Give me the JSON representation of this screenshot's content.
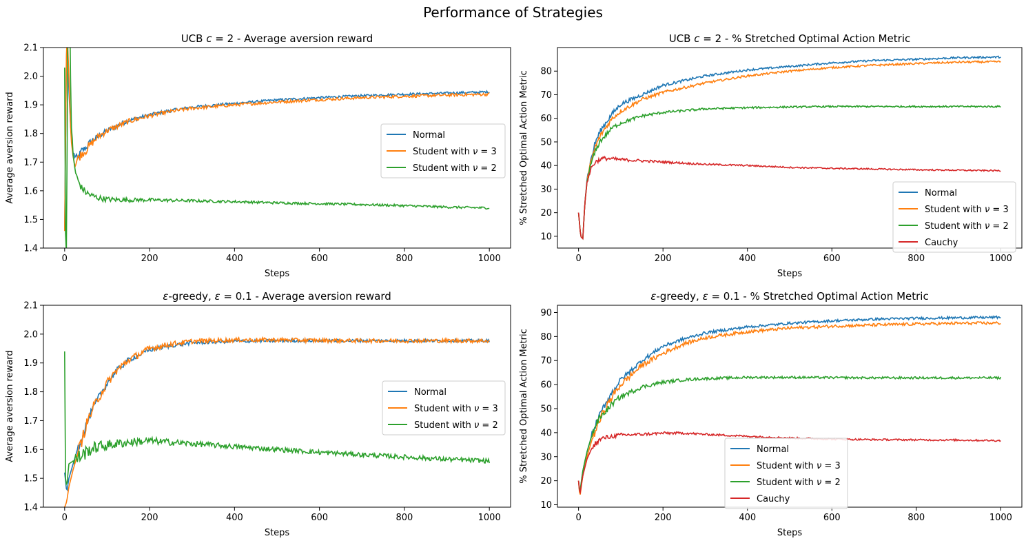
{
  "suptitle": "Performance of Strategies",
  "colors": {
    "normal": "#1f77b4",
    "student3": "#ff7f0e",
    "student2": "#2ca02c",
    "cauchy": "#d62728"
  },
  "chart_data": [
    {
      "id": "ucb-avg",
      "type": "line",
      "title": "UCB c = 2 - Average aversion reward",
      "title_parts": [
        "UCB ",
        "c",
        " = 2 - Average aversion reward"
      ],
      "xlabel": "Steps",
      "ylabel": "Average aversion reward",
      "xlim": [
        -50,
        1050
      ],
      "ylim": [
        1.4,
        2.1
      ],
      "xticks": [
        0,
        200,
        400,
        600,
        800,
        1000
      ],
      "yticks": [
        1.4,
        1.5,
        1.6,
        1.7,
        1.8,
        1.9,
        2.0,
        2.1
      ],
      "ytick_labels": [
        "1.4",
        "1.5",
        "1.6",
        "1.7",
        "1.8",
        "1.9",
        "2.0",
        "2.1"
      ],
      "grid": false,
      "legend": "center-right",
      "series": [
        {
          "name": "Normal",
          "name_parts": [
            "Normal"
          ],
          "color": "#1f77b4",
          "x": [
            0,
            5,
            10,
            15,
            20,
            30,
            40,
            50,
            60,
            80,
            100,
            150,
            200,
            250,
            300,
            400,
            500,
            600,
            700,
            800,
            900,
            1000
          ],
          "y": [
            1.46,
            2.2,
            1.95,
            1.8,
            1.73,
            1.71,
            1.74,
            1.75,
            1.77,
            1.79,
            1.81,
            1.845,
            1.865,
            1.88,
            1.892,
            1.905,
            1.917,
            1.925,
            1.932,
            1.937,
            1.941,
            1.945
          ],
          "noise": 0.004
        },
        {
          "name": "Student with ν = 3",
          "name_parts": [
            "Student with ",
            "ν",
            " = 3"
          ],
          "color": "#ff7f0e",
          "x": [
            0,
            5,
            10,
            15,
            20,
            25,
            30,
            40,
            50,
            60,
            80,
            100,
            150,
            200,
            250,
            300,
            400,
            500,
            600,
            700,
            800,
            900,
            1000
          ],
          "y": [
            1.46,
            2.2,
            2.0,
            1.78,
            1.72,
            1.69,
            1.71,
            1.73,
            1.74,
            1.76,
            1.79,
            1.81,
            1.842,
            1.862,
            1.877,
            1.888,
            1.9,
            1.91,
            1.918,
            1.925,
            1.93,
            1.934,
            1.937
          ],
          "noise": 0.005
        },
        {
          "name": "Student with ν = 2",
          "name_parts": [
            "Student with ",
            "ν",
            " = 2"
          ],
          "color": "#2ca02c",
          "x": [
            0,
            2,
            5,
            7,
            10,
            13,
            15,
            20,
            25,
            30,
            40,
            50,
            60,
            80,
            100,
            150,
            200,
            300,
            400,
            500,
            600,
            700,
            800,
            900,
            1000
          ],
          "y": [
            2.03,
            1.45,
            1.35,
            2.2,
            2.4,
            2.15,
            1.85,
            1.72,
            1.67,
            1.64,
            1.61,
            1.595,
            1.585,
            1.575,
            1.57,
            1.568,
            1.568,
            1.565,
            1.562,
            1.558,
            1.555,
            1.552,
            1.548,
            1.543,
            1.54
          ],
          "noise": 0.004
        }
      ]
    },
    {
      "id": "ucb-pct",
      "type": "line",
      "title": "UCB c = 2 - % Stretched Optimal Action Metric",
      "title_parts": [
        "UCB ",
        "c",
        " = 2 - % Stretched Optimal Action Metric"
      ],
      "xlabel": "Steps",
      "ylabel": "% Stretched Optimal Action Metric",
      "xlim": [
        -50,
        1050
      ],
      "ylim": [
        5,
        90
      ],
      "xticks": [
        0,
        200,
        400,
        600,
        800,
        1000
      ],
      "yticks": [
        10,
        20,
        30,
        40,
        50,
        60,
        70,
        80
      ],
      "ytick_labels": [
        "10",
        "20",
        "30",
        "40",
        "50",
        "60",
        "70",
        "80"
      ],
      "grid": false,
      "legend": "lower-right",
      "series": [
        {
          "name": "Normal",
          "name_parts": [
            "Normal"
          ],
          "color": "#1f77b4",
          "x": [
            0,
            5,
            10,
            15,
            20,
            30,
            40,
            50,
            60,
            80,
            100,
            150,
            200,
            300,
            400,
            500,
            600,
            700,
            800,
            900,
            1000
          ],
          "y": [
            20,
            10,
            9,
            24,
            34,
            43,
            50,
            54,
            57,
            62,
            66,
            70,
            74,
            78,
            80.5,
            82,
            83.5,
            84.5,
            85,
            85.7,
            86
          ],
          "noise": 0.4
        },
        {
          "name": "Student with ν = 3",
          "name_parts": [
            "Student with ",
            "ν",
            " = 3"
          ],
          "color": "#ff7f0e",
          "x": [
            0,
            5,
            10,
            15,
            20,
            30,
            40,
            50,
            60,
            80,
            100,
            150,
            200,
            300,
            400,
            500,
            600,
            700,
            800,
            900,
            1000
          ],
          "y": [
            20,
            10,
            9,
            24,
            33,
            42,
            48,
            52,
            55,
            60,
            63,
            68,
            71,
            75,
            78,
            80,
            81.5,
            82.5,
            83.2,
            83.8,
            84
          ],
          "noise": 0.4
        },
        {
          "name": "Student with ν = 2",
          "name_parts": [
            "Student with ",
            "ν",
            " = 2"
          ],
          "color": "#2ca02c",
          "x": [
            0,
            5,
            10,
            15,
            20,
            30,
            40,
            50,
            60,
            80,
            100,
            150,
            200,
            300,
            400,
            500,
            600,
            700,
            800,
            900,
            1000
          ],
          "y": [
            20,
            10,
            9,
            24,
            33,
            41,
            46,
            50,
            52,
            56,
            58,
            61,
            62.5,
            64,
            64.5,
            64.8,
            65,
            65,
            65,
            65,
            65
          ],
          "noise": 0.35
        },
        {
          "name": "Cauchy",
          "name_parts": [
            "Cauchy"
          ],
          "color": "#d62728",
          "x": [
            0,
            5,
            10,
            15,
            20,
            30,
            40,
            50,
            60,
            80,
            100,
            150,
            200,
            300,
            400,
            500,
            600,
            700,
            800,
            900,
            1000
          ],
          "y": [
            20,
            10,
            9,
            24,
            33,
            39,
            41.5,
            42.5,
            43,
            42.8,
            42.5,
            42,
            41.5,
            40.5,
            40,
            39.2,
            38.8,
            38.5,
            38.2,
            38,
            37.8
          ],
          "noise": 0.3
        }
      ]
    },
    {
      "id": "eps-avg",
      "type": "line",
      "title": "ε-greedy, ε = 0.1 - Average aversion reward",
      "title_parts": [
        "ε",
        "-greedy, ",
        "ε",
        " = 0.1 - Average aversion reward"
      ],
      "xlabel": "Steps",
      "ylabel": "Average aversion reward",
      "xlim": [
        -50,
        1050
      ],
      "ylim": [
        1.4,
        2.1
      ],
      "xticks": [
        0,
        200,
        400,
        600,
        800,
        1000
      ],
      "yticks": [
        1.4,
        1.5,
        1.6,
        1.7,
        1.8,
        1.9,
        2.0,
        2.1
      ],
      "ytick_labels": [
        "1.4",
        "1.5",
        "1.6",
        "1.7",
        "1.8",
        "1.9",
        "2.0",
        "2.1"
      ],
      "grid": false,
      "legend": "center-right",
      "series": [
        {
          "name": "Normal",
          "name_parts": [
            "Normal"
          ],
          "color": "#1f77b4",
          "x": [
            0,
            5,
            10,
            20,
            30,
            40,
            50,
            60,
            80,
            100,
            120,
            150,
            200,
            250,
            300,
            400,
            500,
            600,
            700,
            800,
            900,
            1000
          ],
          "y": [
            1.52,
            1.45,
            1.5,
            1.55,
            1.6,
            1.64,
            1.68,
            1.72,
            1.78,
            1.83,
            1.87,
            1.91,
            1.945,
            1.96,
            1.97,
            1.975,
            1.977,
            1.977,
            1.977,
            1.977,
            1.977,
            1.977
          ],
          "noise": 0.005
        },
        {
          "name": "Student with ν = 3",
          "name_parts": [
            "Student with ",
            "ν",
            " = 3"
          ],
          "color": "#ff7f0e",
          "x": [
            0,
            5,
            10,
            20,
            30,
            40,
            50,
            60,
            80,
            100,
            120,
            150,
            200,
            250,
            300,
            400,
            500,
            600,
            700,
            800,
            900,
            1000
          ],
          "y": [
            1.4,
            1.42,
            1.47,
            1.53,
            1.58,
            1.63,
            1.68,
            1.72,
            1.78,
            1.83,
            1.87,
            1.91,
            1.95,
            1.965,
            1.975,
            1.98,
            1.98,
            1.978,
            1.977,
            1.977,
            1.977,
            1.977
          ],
          "noise": 0.007
        },
        {
          "name": "Student with ν = 2",
          "name_parts": [
            "Student with ",
            "ν",
            " = 2"
          ],
          "color": "#2ca02c",
          "x": [
            0,
            2,
            5,
            10,
            20,
            30,
            40,
            60,
            80,
            100,
            150,
            200,
            250,
            300,
            350,
            400,
            450,
            500,
            600,
            700,
            800,
            900,
            1000
          ],
          "y": [
            1.94,
            1.5,
            1.47,
            1.55,
            1.56,
            1.57,
            1.58,
            1.6,
            1.61,
            1.615,
            1.625,
            1.63,
            1.625,
            1.62,
            1.615,
            1.61,
            1.605,
            1.6,
            1.59,
            1.582,
            1.574,
            1.566,
            1.56
          ],
          "noise": 0.008
        }
      ]
    },
    {
      "id": "eps-pct",
      "type": "line",
      "title": "ε-greedy, ε = 0.1 - % Stretched Optimal Action Metric",
      "title_parts": [
        "ε",
        "-greedy, ",
        "ε",
        " = 0.1 - % Stretched Optimal Action Metric"
      ],
      "xlabel": "Steps",
      "ylabel": "% Stretched Optimal Action Metric",
      "xlim": [
        -50,
        1050
      ],
      "ylim": [
        9,
        93
      ],
      "xticks": [
        0,
        200,
        400,
        600,
        800,
        1000
      ],
      "yticks": [
        10,
        20,
        30,
        40,
        50,
        60,
        70,
        80,
        90
      ],
      "ytick_labels": [
        "10",
        "20",
        "30",
        "40",
        "50",
        "60",
        "70",
        "80",
        "90"
      ],
      "grid": false,
      "legend": "lower-center",
      "series": [
        {
          "name": "Normal",
          "name_parts": [
            "Normal"
          ],
          "color": "#1f77b4",
          "x": [
            0,
            3,
            10,
            20,
            30,
            40,
            50,
            60,
            80,
            100,
            150,
            200,
            250,
            300,
            400,
            500,
            600,
            700,
            800,
            900,
            1000
          ],
          "y": [
            20,
            14,
            24,
            32,
            38,
            43,
            47,
            51,
            57,
            62,
            70,
            76,
            79,
            81.5,
            84,
            85.5,
            86.5,
            87.2,
            87.6,
            87.8,
            88
          ],
          "noise": 0.5
        },
        {
          "name": "Student with ν = 3",
          "name_parts": [
            "Student with ",
            "ν",
            " = 3"
          ],
          "color": "#ff7f0e",
          "x": [
            0,
            3,
            10,
            20,
            30,
            40,
            50,
            60,
            80,
            100,
            150,
            200,
            250,
            300,
            400,
            500,
            600,
            700,
            800,
            900,
            1000
          ],
          "y": [
            20,
            13,
            22,
            30,
            36,
            41,
            45,
            49,
            55,
            60,
            68,
            73,
            77,
            79.5,
            82,
            83.5,
            84.3,
            84.8,
            85.2,
            85.5,
            85.6
          ],
          "noise": 0.6
        },
        {
          "name": "Student with ν = 2",
          "name_parts": [
            "Student with ",
            "ν",
            " = 2"
          ],
          "color": "#2ca02c",
          "x": [
            0,
            3,
            10,
            20,
            30,
            40,
            50,
            60,
            80,
            100,
            150,
            200,
            250,
            300,
            400,
            500,
            600,
            700,
            800,
            900,
            1000
          ],
          "y": [
            20,
            15,
            24,
            32,
            38,
            43,
            46,
            48,
            52,
            55,
            59,
            61,
            62,
            62.5,
            63,
            63,
            62.9,
            62.8,
            62.8,
            62.8,
            62.8
          ],
          "noise": 0.45
        },
        {
          "name": "Cauchy",
          "name_parts": [
            "Cauchy"
          ],
          "color": "#d62728",
          "x": [
            0,
            3,
            10,
            20,
            30,
            40,
            50,
            60,
            80,
            100,
            150,
            200,
            250,
            300,
            400,
            500,
            600,
            700,
            800,
            900,
            1000
          ],
          "y": [
            20,
            14,
            22,
            29,
            33,
            35.5,
            37,
            37.8,
            38.5,
            39,
            39.3,
            39.8,
            39.8,
            39.3,
            38.5,
            37.8,
            37.3,
            37.1,
            37,
            36.9,
            36.7
          ],
          "noise": 0.35
        }
      ]
    }
  ]
}
